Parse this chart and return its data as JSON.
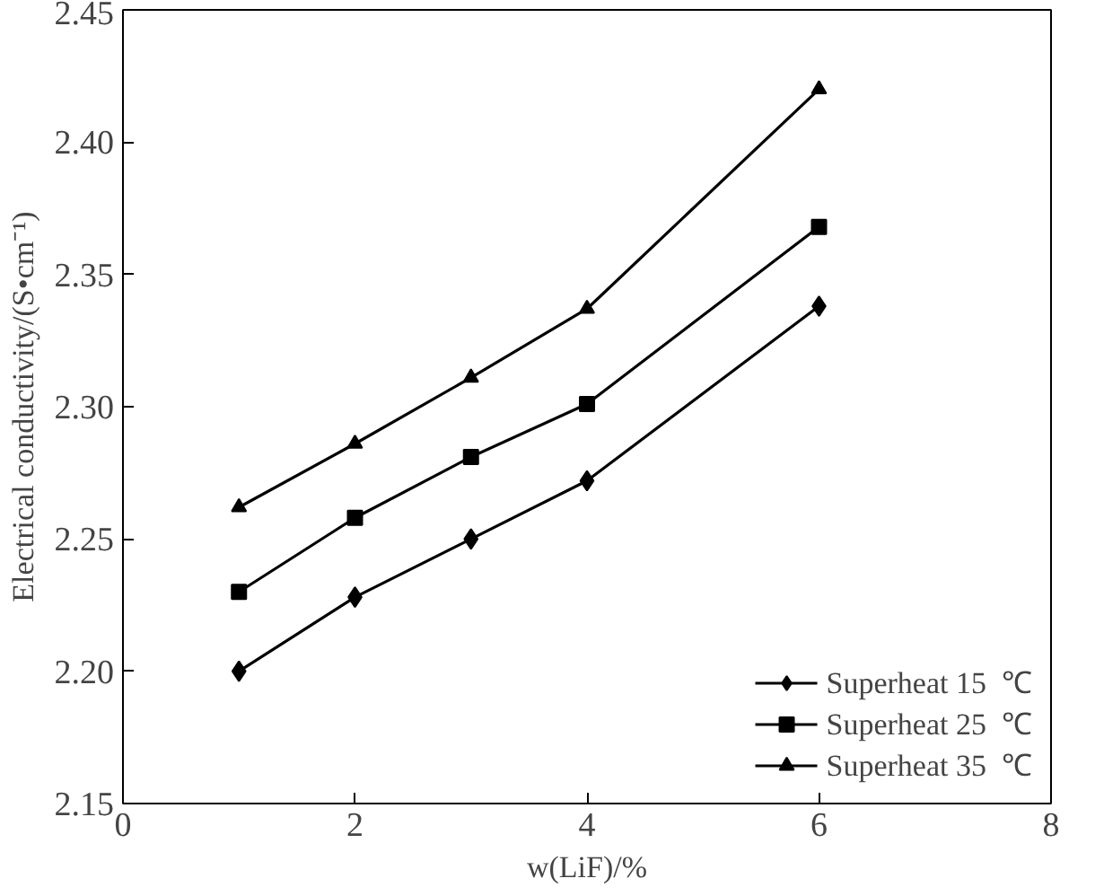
{
  "chart_data": {
    "type": "line",
    "xlabel": "w(LiF)/%",
    "ylabel": "Electrical conductivity/(S•cm⁻¹)",
    "x": [
      1,
      2,
      3,
      4,
      6
    ],
    "series": [
      {
        "name": "Superheat 15  ℃",
        "color": "#000000",
        "marker": "diamond",
        "values": [
          2.2,
          2.228,
          2.25,
          2.272,
          2.338
        ]
      },
      {
        "name": "Superheat 25  ℃",
        "color": "#000000",
        "marker": "square",
        "values": [
          2.23,
          2.258,
          2.281,
          2.301,
          2.368
        ]
      },
      {
        "name": "Superheat 35  ℃",
        "color": "#000000",
        "marker": "triangle",
        "values": [
          2.262,
          2.286,
          2.311,
          2.337,
          2.42
        ]
      }
    ],
    "xlim": [
      0,
      8
    ],
    "xticks": [
      0,
      2,
      4,
      6,
      8
    ],
    "ylim": [
      2.15,
      2.45
    ],
    "yticks": [
      {
        "value": 2.15,
        "label": "2.15"
      },
      {
        "value": 2.2,
        "label": "2.20"
      },
      {
        "value": 2.25,
        "label": "2.25"
      },
      {
        "value": 2.3,
        "label": "2.30"
      },
      {
        "value": 2.35,
        "label": "2.35"
      },
      {
        "value": 2.4,
        "label": "2.40"
      },
      {
        "value": 2.45,
        "label": "2.45"
      }
    ],
    "grid": false,
    "legend": "bottom right",
    "line_style": "solid"
  }
}
